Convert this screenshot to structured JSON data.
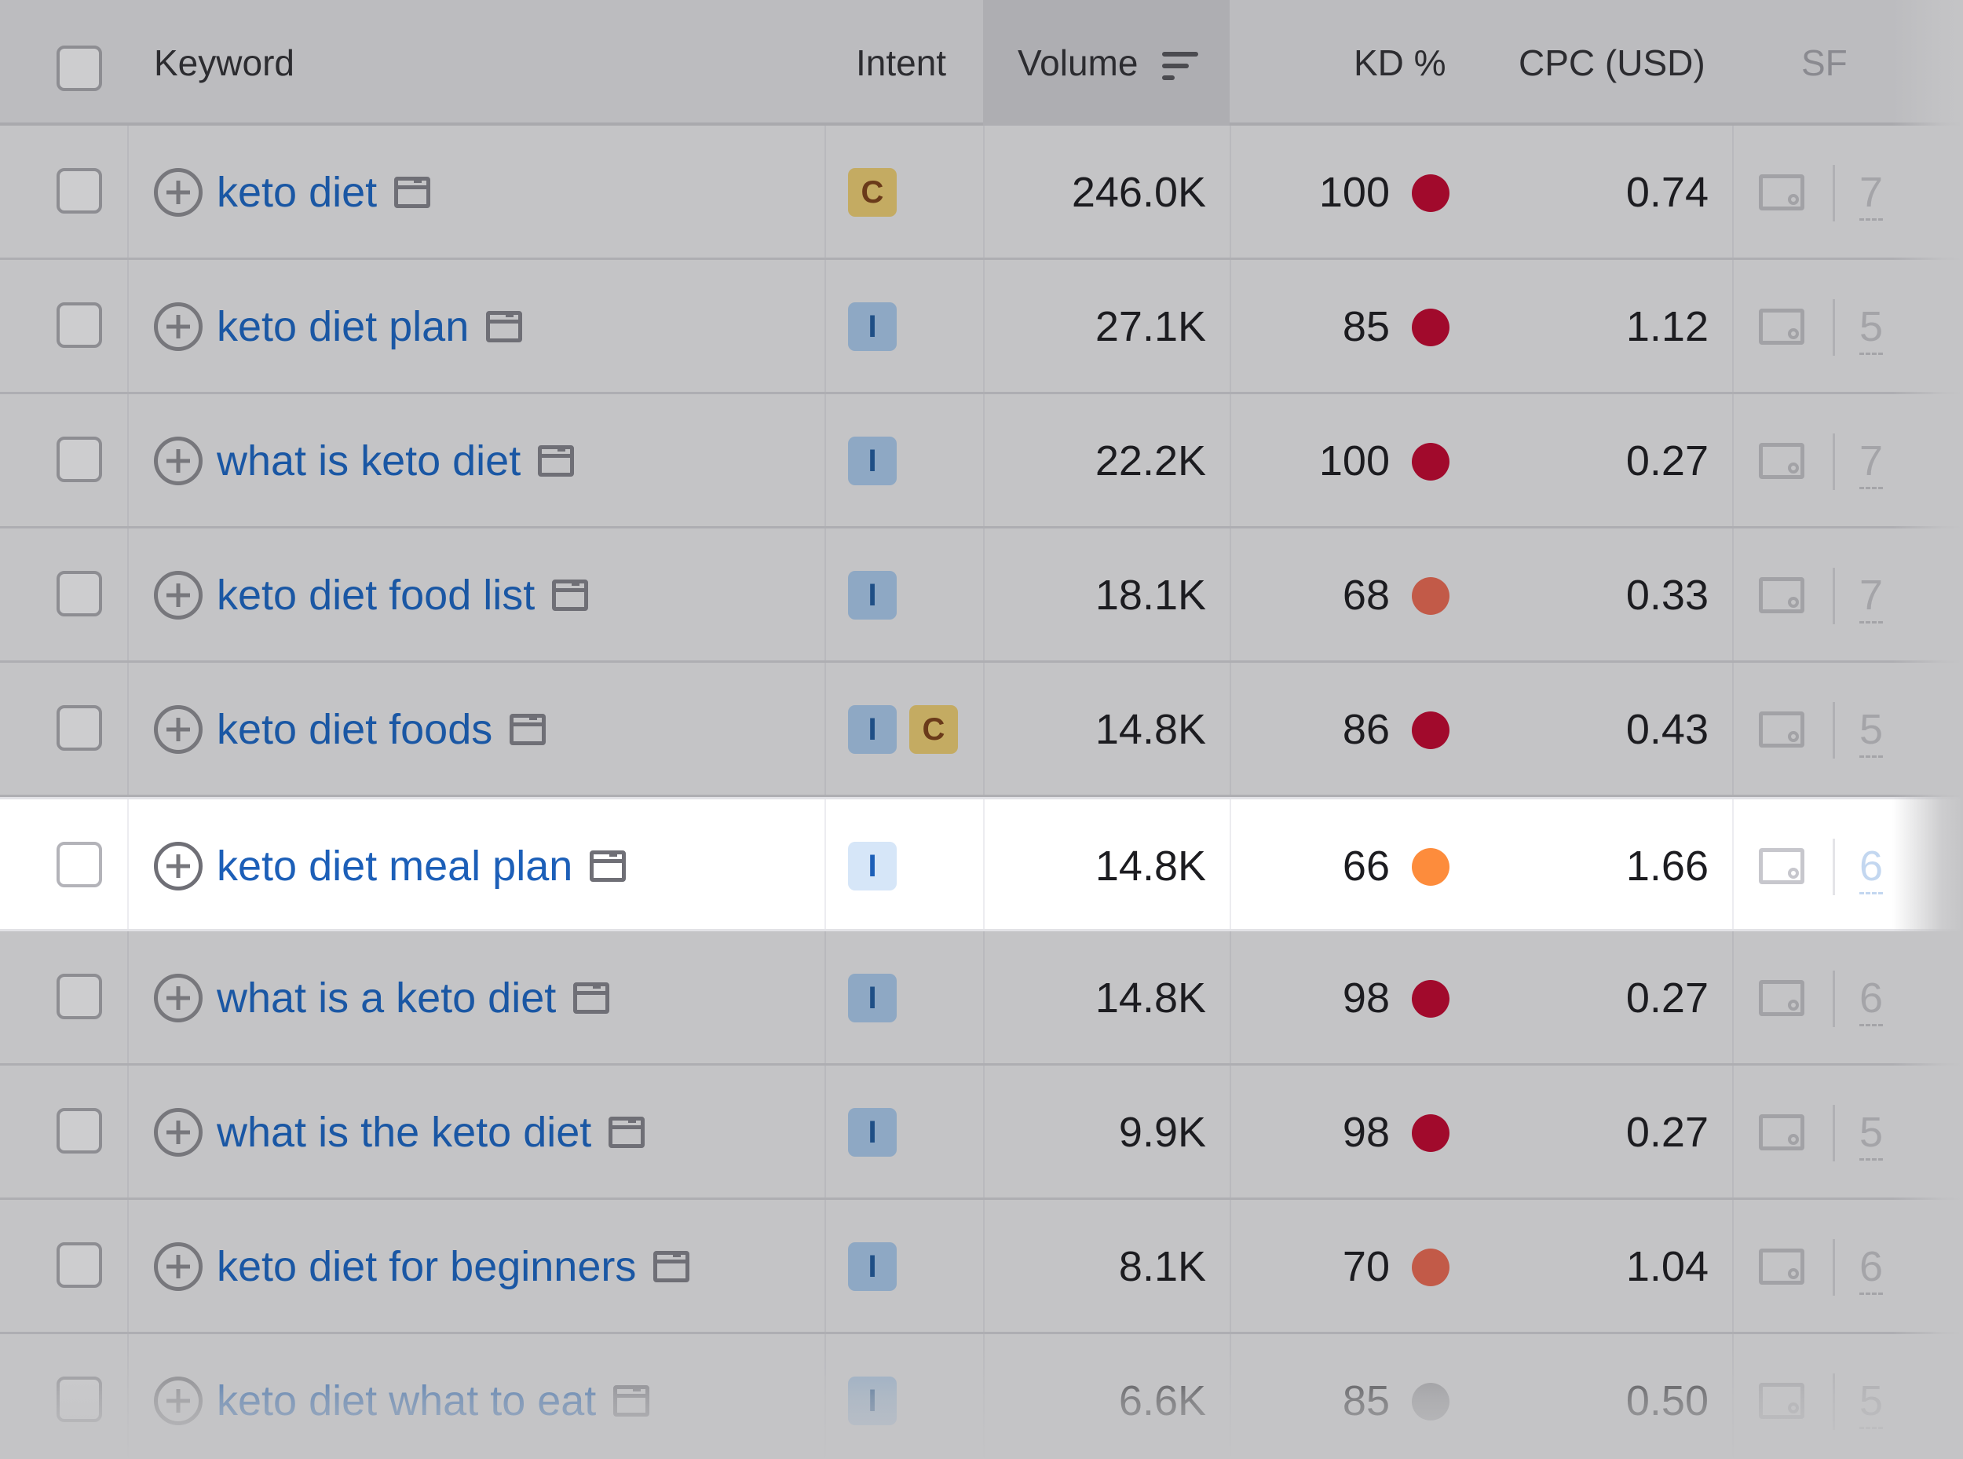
{
  "header": {
    "keyword": "Keyword",
    "intent": "Intent",
    "volume": "Volume",
    "kd": "KD %",
    "cpc": "CPC (USD)",
    "sf": "SF"
  },
  "colors": {
    "kd_red": "#a10a2c",
    "kd_orange_red": "#c25a48",
    "kd_orange": "#fd8c3c",
    "kd_gray": "#8a8a8e"
  },
  "rows": [
    {
      "keyword": "keto diet",
      "intents": [
        "C"
      ],
      "volume": "246.0K",
      "kd": "100",
      "kd_level": "red",
      "cpc": "0.74",
      "sf": "7"
    },
    {
      "keyword": "keto diet plan",
      "intents": [
        "I"
      ],
      "volume": "27.1K",
      "kd": "85",
      "kd_level": "red",
      "cpc": "1.12",
      "sf": "5"
    },
    {
      "keyword": "what is keto diet",
      "intents": [
        "I"
      ],
      "volume": "22.2K",
      "kd": "100",
      "kd_level": "red",
      "cpc": "0.27",
      "sf": "7"
    },
    {
      "keyword": "keto diet food list",
      "intents": [
        "I"
      ],
      "volume": "18.1K",
      "kd": "68",
      "kd_level": "orange_red",
      "cpc": "0.33",
      "sf": "7"
    },
    {
      "keyword": "keto diet foods",
      "intents": [
        "I",
        "C"
      ],
      "volume": "14.8K",
      "kd": "86",
      "kd_level": "red",
      "cpc": "0.43",
      "sf": "5"
    },
    {
      "keyword": "keto diet meal plan",
      "intents": [
        "I"
      ],
      "volume": "14.8K",
      "kd": "66",
      "kd_level": "orange",
      "cpc": "1.66",
      "sf": "6",
      "highlighted": true
    },
    {
      "keyword": "what is a keto diet",
      "intents": [
        "I"
      ],
      "volume": "14.8K",
      "kd": "98",
      "kd_level": "red",
      "cpc": "0.27",
      "sf": "6"
    },
    {
      "keyword": "what is the keto diet",
      "intents": [
        "I"
      ],
      "volume": "9.9K",
      "kd": "98",
      "kd_level": "red",
      "cpc": "0.27",
      "sf": "5"
    },
    {
      "keyword": "keto diet for beginners",
      "intents": [
        "I"
      ],
      "volume": "8.1K",
      "kd": "70",
      "kd_level": "orange_red",
      "cpc": "1.04",
      "sf": "6"
    },
    {
      "keyword": "keto diet what to eat",
      "intents": [
        "I"
      ],
      "volume": "6.6K",
      "kd": "85",
      "kd_level": "gray",
      "cpc": "0.50",
      "sf": "5"
    }
  ]
}
